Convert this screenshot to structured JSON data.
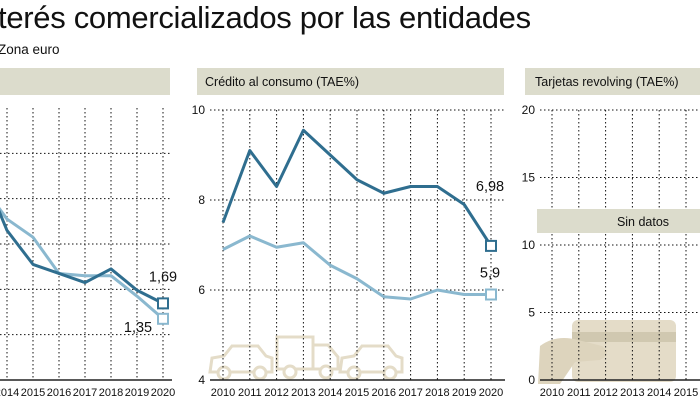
{
  "header": {
    "title": "terés comercializados por las entidades",
    "subtitle": "Zona euro"
  },
  "colors": {
    "dark": "#2f6e8f",
    "light": "#8ab8cf",
    "panel": "#dcdccc",
    "grid": "#111111",
    "illustration": "#e4dcc8"
  },
  "chart_data": [
    {
      "type": "line",
      "title": "",
      "xlabel": "",
      "ylabel": "",
      "categories": [
        "2014",
        "2015",
        "2016",
        "2017",
        "2018",
        "2019",
        "2020"
      ],
      "series": [
        {
          "name": "dark",
          "values": [
            3.3,
            2.55,
            2.35,
            2.15,
            2.45,
            1.98,
            1.69
          ]
        },
        {
          "name": "light",
          "values": [
            3.55,
            3.15,
            2.35,
            2.3,
            2.3,
            1.85,
            1.35
          ]
        }
      ],
      "prelude": {
        "dark": 4.1,
        "light": 4.0
      },
      "ylim": [
        0,
        6
      ],
      "labels": {
        "dark": "1,69",
        "light": "1,35"
      }
    },
    {
      "type": "line",
      "title": "Crédito al consumo (TAE%)",
      "xlabel": "",
      "ylabel": "",
      "categories": [
        "2010",
        "2011",
        "2012",
        "2013",
        "2014",
        "2015",
        "2016",
        "2017",
        "2018",
        "2019",
        "2020"
      ],
      "yticks": [
        "4",
        "6",
        "8",
        "10"
      ],
      "ylim": [
        4,
        10
      ],
      "series": [
        {
          "name": "dark",
          "values": [
            7.5,
            9.1,
            8.3,
            9.55,
            9.0,
            8.45,
            8.15,
            8.3,
            8.3,
            7.9,
            6.98
          ]
        },
        {
          "name": "light",
          "values": [
            6.9,
            7.2,
            6.95,
            7.05,
            6.55,
            6.25,
            5.85,
            5.8,
            6.0,
            5.9,
            5.9
          ]
        }
      ],
      "labels": {
        "dark": "6,98",
        "light": "5,9"
      }
    },
    {
      "type": "line",
      "title": "Tarjetas revolving (TAE%)",
      "xlabel": "",
      "ylabel": "",
      "categories": [
        "2010",
        "2011",
        "2012",
        "2013",
        "2014",
        "2015"
      ],
      "yticks": [
        "0",
        "5",
        "10",
        "15",
        "20"
      ],
      "ylim": [
        0,
        20
      ],
      "series": [],
      "note": "Sin datos"
    }
  ]
}
